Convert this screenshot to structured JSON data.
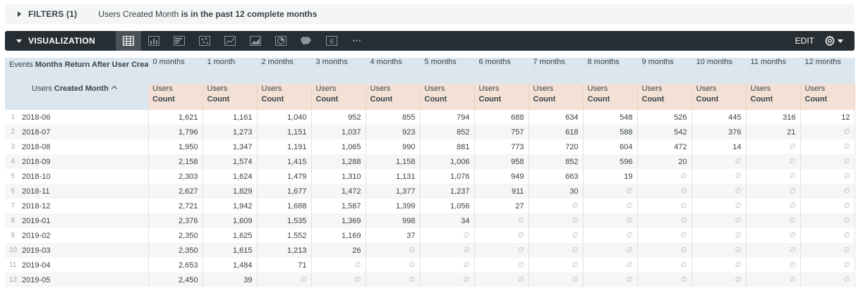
{
  "filters": {
    "label": "FILTERS (1)",
    "field": "Users Created Month",
    "condition": "is in the past 12 complete months"
  },
  "visualization": {
    "label": "VISUALIZATION",
    "edit_label": "EDIT",
    "number_icon_text": "6",
    "more_text": "•••",
    "icons": [
      "table-icon",
      "column-chart-icon",
      "bar-chart-icon",
      "scatter-icon",
      "line-chart-icon",
      "area-chart-icon",
      "pie-chart-icon",
      "map-icon",
      "single-value-icon",
      "more-icon"
    ]
  },
  "table": {
    "pivot_label": "Events",
    "pivot_field": "Months Return After User Created",
    "dimension_label": "Users",
    "dimension_field": "Created Month",
    "measure_label": "Users",
    "measure_field": "Count",
    "null_symbol": "∅",
    "columns": [
      "0 months",
      "1 month",
      "2 months",
      "3 months",
      "4 months",
      "5 months",
      "6 months",
      "7 months",
      "8 months",
      "9 months",
      "10 months",
      "11 months",
      "12 months"
    ],
    "rows": [
      {
        "index": "1",
        "month": "2018-06",
        "values": [
          "1,621",
          "1,161",
          "1,040",
          "952",
          "855",
          "794",
          "688",
          "634",
          "548",
          "526",
          "445",
          "316",
          "12"
        ]
      },
      {
        "index": "2",
        "month": "2018-07",
        "values": [
          "1,796",
          "1,273",
          "1,151",
          "1,037",
          "923",
          "852",
          "757",
          "618",
          "588",
          "542",
          "376",
          "21",
          null
        ]
      },
      {
        "index": "3",
        "month": "2018-08",
        "values": [
          "1,950",
          "1,347",
          "1,191",
          "1,065",
          "990",
          "881",
          "773",
          "720",
          "604",
          "472",
          "14",
          null,
          null
        ]
      },
      {
        "index": "4",
        "month": "2018-09",
        "values": [
          "2,158",
          "1,574",
          "1,415",
          "1,288",
          "1,158",
          "1,006",
          "958",
          "852",
          "596",
          "20",
          null,
          null,
          null
        ]
      },
      {
        "index": "5",
        "month": "2018-10",
        "values": [
          "2,303",
          "1,624",
          "1,479",
          "1,310",
          "1,131",
          "1,076",
          "949",
          "663",
          "19",
          null,
          null,
          null,
          null
        ]
      },
      {
        "index": "6",
        "month": "2018-11",
        "values": [
          "2,627",
          "1,829",
          "1,677",
          "1,472",
          "1,377",
          "1,237",
          "911",
          "30",
          null,
          null,
          null,
          null,
          null
        ]
      },
      {
        "index": "7",
        "month": "2018-12",
        "values": [
          "2,721",
          "1,942",
          "1,688",
          "1,587",
          "1,399",
          "1,056",
          "27",
          null,
          null,
          null,
          null,
          null,
          null
        ]
      },
      {
        "index": "8",
        "month": "2019-01",
        "values": [
          "2,376",
          "1,609",
          "1,535",
          "1,369",
          "998",
          "34",
          null,
          null,
          null,
          null,
          null,
          null,
          null
        ]
      },
      {
        "index": "9",
        "month": "2019-02",
        "values": [
          "2,350",
          "1,625",
          "1,552",
          "1,169",
          "37",
          null,
          null,
          null,
          null,
          null,
          null,
          null,
          null
        ]
      },
      {
        "index": "10",
        "month": "2019-03",
        "values": [
          "2,350",
          "1,615",
          "1,213",
          "26",
          null,
          null,
          null,
          null,
          null,
          null,
          null,
          null,
          null
        ]
      },
      {
        "index": "11",
        "month": "2019-04",
        "values": [
          "2,653",
          "1,484",
          "71",
          null,
          null,
          null,
          null,
          null,
          null,
          null,
          null,
          null,
          null
        ]
      },
      {
        "index": "12",
        "month": "2019-05",
        "values": [
          "2,450",
          "39",
          null,
          null,
          null,
          null,
          null,
          null,
          null,
          null,
          null,
          null,
          null
        ]
      }
    ]
  }
}
